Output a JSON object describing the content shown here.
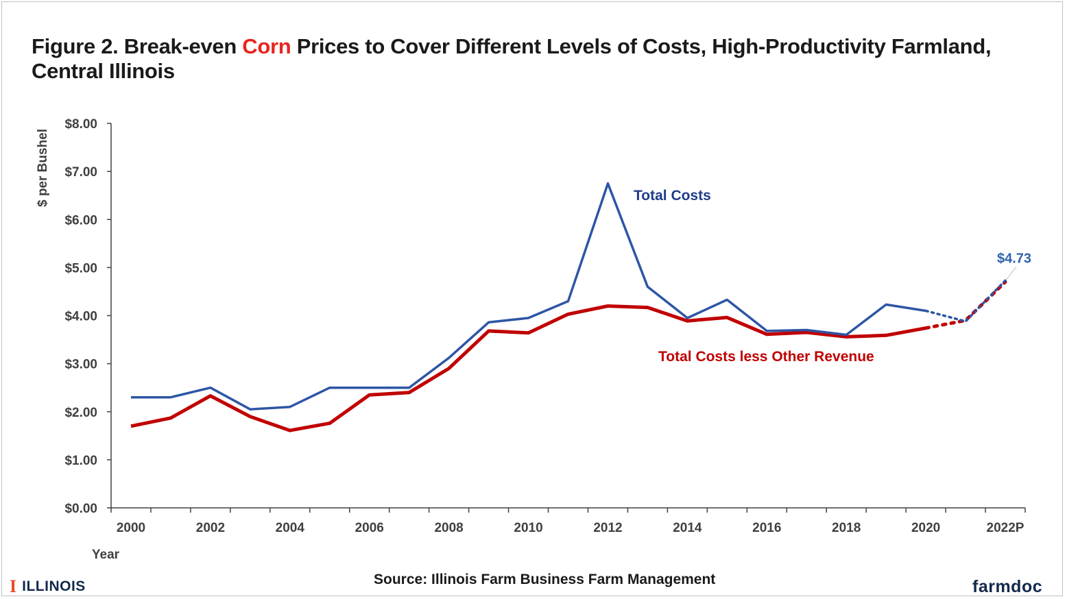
{
  "title": {
    "prefix": "Figure 2. Break-even ",
    "highlight": "Corn",
    "suffix": " Prices to Cover Different Levels of Costs, High-Productivity Farmland, Central Illinois"
  },
  "source": "Source:  Illinois Farm Business Farm Management",
  "logos": {
    "illinois": "ILLINOIS",
    "illinois_mark": "I",
    "farmdoc": "farmdoc"
  },
  "colors": {
    "blue": "#2e55a5",
    "red": "#c00000",
    "axis": "#404040"
  },
  "chart_data": {
    "type": "line",
    "title": "Figure 2. Break-even Corn Prices to Cover Different Levels of Costs, High-Productivity Farmland, Central Illinois",
    "xlabel": "Year",
    "ylabel": "$ per Bushel",
    "ylim": [
      0,
      8
    ],
    "yticks": [
      "$0.00",
      "$1.00",
      "$2.00",
      "$3.00",
      "$4.00",
      "$5.00",
      "$6.00",
      "$7.00",
      "$8.00"
    ],
    "x": [
      2000,
      2001,
      2002,
      2003,
      2004,
      2005,
      2006,
      2007,
      2008,
      2009,
      2010,
      2011,
      2012,
      2013,
      2014,
      2015,
      2016,
      2017,
      2018,
      2019,
      2020,
      2021,
      2022
    ],
    "xtick_labels": [
      "2000",
      "2002",
      "2004",
      "2006",
      "2008",
      "2010",
      "2012",
      "2014",
      "2016",
      "2018",
      "2020",
      "2022P"
    ],
    "series": [
      {
        "name": "Total Costs",
        "label": "Total Costs",
        "values": [
          2.3,
          2.3,
          2.5,
          2.05,
          2.1,
          2.5,
          2.5,
          2.5,
          3.12,
          3.86,
          3.95,
          4.3,
          6.75,
          4.6,
          3.95,
          4.33,
          3.68,
          3.7,
          3.6,
          4.23,
          4.1,
          3.88,
          4.73
        ],
        "projected_from_index": 20
      },
      {
        "name": "Total Costs less Other Revenue",
        "label": "Total Costs less Other Revenue",
        "values": [
          1.7,
          1.87,
          2.33,
          1.9,
          1.61,
          1.76,
          2.35,
          2.4,
          2.9,
          3.68,
          3.64,
          4.03,
          4.2,
          4.17,
          3.89,
          3.96,
          3.61,
          3.65,
          3.56,
          3.59,
          3.74,
          3.9,
          4.7
        ],
        "projected_from_index": 20
      }
    ],
    "annotations": [
      {
        "text": "$4.73",
        "x": 2022,
        "y": 4.73,
        "series": "Total Costs"
      }
    ]
  }
}
